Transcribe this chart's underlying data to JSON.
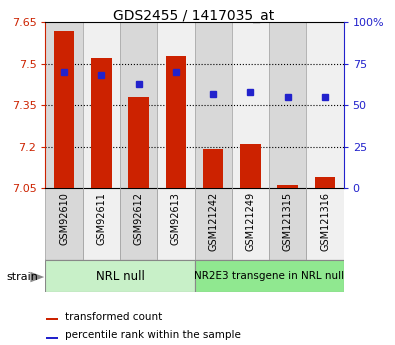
{
  "title": "GDS2455 / 1417035_at",
  "samples": [
    "GSM92610",
    "GSM92611",
    "GSM92612",
    "GSM92613",
    "GSM121242",
    "GSM121249",
    "GSM121315",
    "GSM121316"
  ],
  "transformed_counts": [
    7.62,
    7.52,
    7.38,
    7.53,
    7.19,
    7.21,
    7.06,
    7.09
  ],
  "percentile_ranks": [
    70,
    68,
    63,
    70,
    57,
    58,
    55,
    55
  ],
  "y_min": 7.05,
  "y_max": 7.65,
  "y_ticks": [
    7.05,
    7.2,
    7.35,
    7.5,
    7.65
  ],
  "y_tick_labels": [
    "7.05",
    "7.2",
    "7.35",
    "7.5",
    "7.65"
  ],
  "right_y_ticks": [
    0,
    25,
    50,
    75,
    100
  ],
  "right_y_tick_labels": [
    "0",
    "25",
    "50",
    "75",
    "100%"
  ],
  "group1_label": "NRL null",
  "group2_label": "NR2E3 transgene in NRL null",
  "group1_color": "#c8f0c8",
  "group2_color": "#90e890",
  "bar_color": "#cc2200",
  "dot_color": "#2222cc",
  "col_colors": [
    "#d8d8d8",
    "#f0f0f0",
    "#d8d8d8",
    "#f0f0f0",
    "#d8d8d8",
    "#f0f0f0",
    "#d8d8d8",
    "#f0f0f0"
  ],
  "axis_color_left": "#cc2200",
  "axis_color_right": "#2222cc",
  "strain_label": "strain",
  "legend_items": [
    "transformed count",
    "percentile rank within the sample"
  ]
}
